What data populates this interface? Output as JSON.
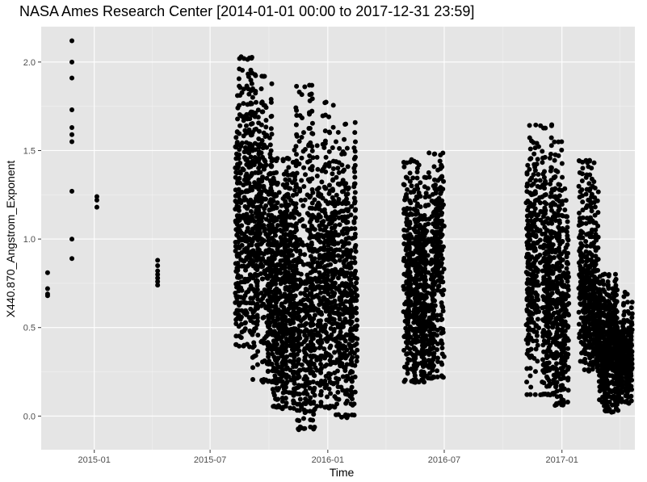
{
  "chart_data": {
    "type": "scatter",
    "title": "NASA Ames Research Center [2014-01-01 00:00 to 2017-12-31 23:59]",
    "xlabel": "Time",
    "ylabel": "X440.870_Angstrom_Exponent",
    "x_ticks": [
      "2015-01",
      "2015-07",
      "2016-01",
      "2016-07",
      "2017-01"
    ],
    "y_ticks": [
      0.0,
      0.5,
      1.0,
      1.5,
      2.0
    ],
    "y_tick_labels": [
      "0.0",
      "0.5",
      "1.0",
      "1.5",
      "2.0"
    ],
    "xlim": [
      "2014-10-10",
      "2017-04-25"
    ],
    "ylim": [
      -0.19,
      2.2
    ],
    "grid": true,
    "background": "#e5e5e5",
    "point_color": "#000000",
    "points": [
      {
        "x": "2014-10-20",
        "y": 0.81
      },
      {
        "x": "2014-10-20",
        "y": 0.72
      },
      {
        "x": "2014-10-20",
        "y": 0.69
      },
      {
        "x": "2014-10-20",
        "y": 0.68
      },
      {
        "x": "2014-11-27",
        "y": 2.12
      },
      {
        "x": "2014-11-27",
        "y": 2.0
      },
      {
        "x": "2014-11-27",
        "y": 1.91
      },
      {
        "x": "2014-11-27",
        "y": 1.73
      },
      {
        "x": "2014-11-27",
        "y": 1.63
      },
      {
        "x": "2014-11-27",
        "y": 1.59
      },
      {
        "x": "2014-11-27",
        "y": 1.55
      },
      {
        "x": "2014-11-27",
        "y": 1.27
      },
      {
        "x": "2014-11-27",
        "y": 1.0
      },
      {
        "x": "2014-11-27",
        "y": 0.89
      },
      {
        "x": "2015-01-05",
        "y": 1.24
      },
      {
        "x": "2015-01-05",
        "y": 1.22
      },
      {
        "x": "2015-01-05",
        "y": 1.18
      },
      {
        "x": "2015-04-10",
        "y": 0.88
      },
      {
        "x": "2015-04-10",
        "y": 0.85
      },
      {
        "x": "2015-04-10",
        "y": 0.82
      },
      {
        "x": "2015-04-10",
        "y": 0.8
      },
      {
        "x": "2015-04-10",
        "y": 0.78
      },
      {
        "x": "2015-04-10",
        "y": 0.76
      },
      {
        "x": "2015-04-10",
        "y": 0.74
      }
    ],
    "point_clusters": [
      {
        "x_start": "2015-08-10",
        "x_end": "2015-09-05",
        "y_min": 0.4,
        "y_max": 2.02
      },
      {
        "x_start": "2015-09-05",
        "x_end": "2015-10-05",
        "y_min": 0.2,
        "y_max": 1.92
      },
      {
        "x_start": "2015-10-05",
        "x_end": "2015-11-10",
        "y_min": 0.05,
        "y_max": 1.45
      },
      {
        "x_start": "2015-11-10",
        "x_end": "2015-12-12",
        "y_min": -0.07,
        "y_max": 1.86
      },
      {
        "x_start": "2015-12-12",
        "x_end": "2016-01-12",
        "y_min": 0.05,
        "y_max": 1.77
      },
      {
        "x_start": "2016-01-12",
        "x_end": "2016-02-15",
        "y_min": 0.0,
        "y_max": 1.65
      },
      {
        "x_start": "2016-04-28",
        "x_end": "2016-06-01",
        "y_min": 0.2,
        "y_max": 1.44
      },
      {
        "x_start": "2016-06-01",
        "x_end": "2016-06-30",
        "y_min": 0.22,
        "y_max": 1.48
      },
      {
        "x_start": "2016-11-07",
        "x_end": "2016-12-20",
        "y_min": 0.12,
        "y_max": 1.64
      },
      {
        "x_start": "2016-12-20",
        "x_end": "2017-01-12",
        "y_min": 0.07,
        "y_max": 1.55
      },
      {
        "x_start": "2017-01-28",
        "x_end": "2017-03-01",
        "y_min": 0.26,
        "y_max": 1.44
      },
      {
        "x_start": "2017-03-01",
        "x_end": "2017-03-30",
        "y_min": 0.03,
        "y_max": 0.8
      },
      {
        "x_start": "2017-03-30",
        "x_end": "2017-04-20",
        "y_min": 0.08,
        "y_max": 0.7
      }
    ]
  }
}
